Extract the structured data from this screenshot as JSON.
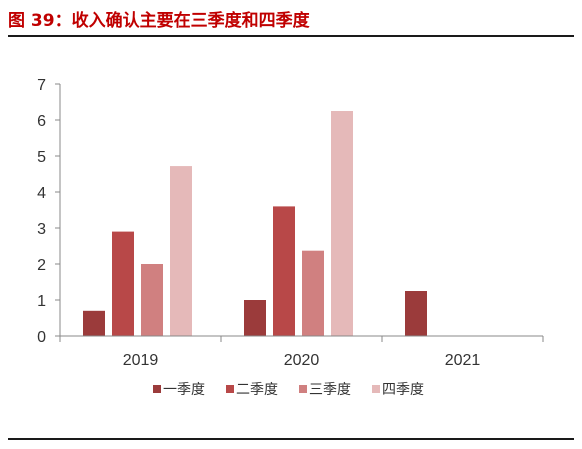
{
  "figure": {
    "title": "图 39：收入确认主要在三季度和四季度"
  },
  "chart_data": {
    "type": "bar",
    "title": "",
    "xlabel": "",
    "ylabel": "",
    "categories": [
      "2019",
      "2020",
      "2021"
    ],
    "ylim": [
      0,
      7
    ],
    "yticks": [
      "0",
      "1",
      "2",
      "3",
      "4",
      "5",
      "6",
      "7"
    ],
    "grid": false,
    "legend_position": "bottom",
    "series": [
      {
        "name": "一季度",
        "color": "#9b3b3b",
        "values": [
          0.7,
          1.0,
          1.25
        ]
      },
      {
        "name": "二季度",
        "color": "#b84848",
        "values": [
          2.9,
          3.6,
          null
        ]
      },
      {
        "name": "三季度",
        "color": "#d08080",
        "values": [
          2.0,
          2.37,
          null
        ]
      },
      {
        "name": "四季度",
        "color": "#e5b9b9",
        "values": [
          4.72,
          6.25,
          null
        ]
      }
    ]
  }
}
